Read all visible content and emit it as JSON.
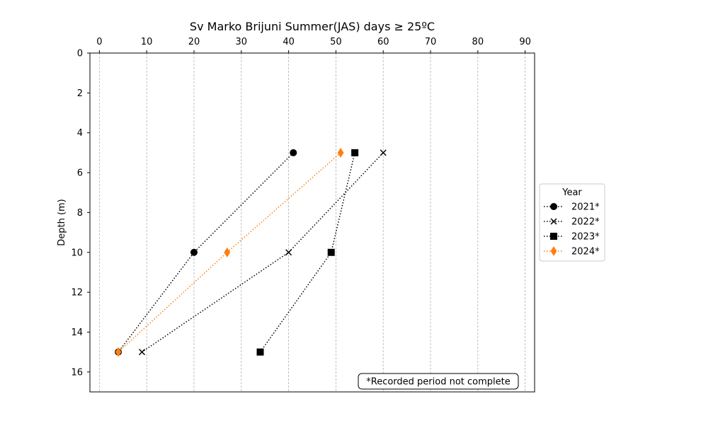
{
  "chart_data": {
    "type": "line",
    "title": "Sv Marko Brijuni Summer(JAS) days ≥ 25ºC",
    "xlabel": "",
    "ylabel": "Depth (m)",
    "xlim": [
      -2,
      92
    ],
    "ylim": [
      17,
      0
    ],
    "x_axis_position": "top",
    "y_inverted": true,
    "xticks": [
      0,
      10,
      20,
      30,
      40,
      50,
      60,
      70,
      80,
      90
    ],
    "yticks": [
      0,
      2,
      4,
      6,
      8,
      10,
      12,
      14,
      16
    ],
    "grid": "x-dashed",
    "legend_title": "Year",
    "legend_position": "outside-right",
    "annotation": "*Recorded period not complete",
    "series": [
      {
        "name": "2021*",
        "marker": "circle",
        "color": "#000000",
        "linestyle": "dotted",
        "points": [
          {
            "x": 41,
            "y": 5
          },
          {
            "x": 20,
            "y": 10
          },
          {
            "x": 4,
            "y": 15
          }
        ]
      },
      {
        "name": "2022*",
        "marker": "x",
        "color": "#000000",
        "linestyle": "dotted",
        "points": [
          {
            "x": 60,
            "y": 5
          },
          {
            "x": 40,
            "y": 10
          },
          {
            "x": 9,
            "y": 15
          }
        ]
      },
      {
        "name": "2023*",
        "marker": "square",
        "color": "#000000",
        "linestyle": "dotted",
        "points": [
          {
            "x": 54,
            "y": 5
          },
          {
            "x": 49,
            "y": 10
          },
          {
            "x": 34,
            "y": 15
          }
        ]
      },
      {
        "name": "2024*",
        "marker": "diamond",
        "color": "#ff7f0e",
        "linestyle": "dotted",
        "points": [
          {
            "x": 51,
            "y": 5
          },
          {
            "x": 27,
            "y": 10
          },
          {
            "x": 4,
            "y": 15
          }
        ]
      }
    ]
  }
}
